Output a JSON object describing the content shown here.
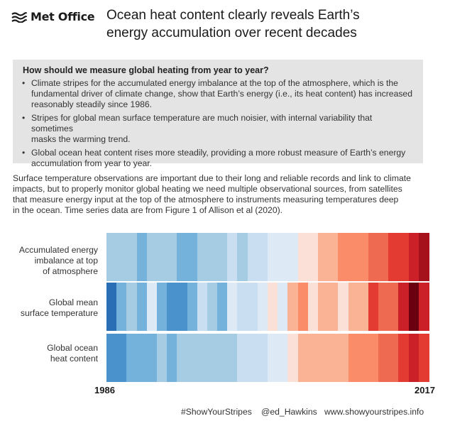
{
  "header": {
    "logo_text": "Met Office",
    "logo_icon": "met-office-wave-icon",
    "headline_lines": [
      "Ocean heat content clearly reveals Earth’s",
      "energy accumulation over recent decades"
    ]
  },
  "infobox": {
    "question": "How should we measure global heating from year to year?",
    "bullets": [
      [
        "Climate stripes for the accumulated energy imbalance at the top of the atmosphere, which is the",
        "fundamental driver of climate change, show that Earth’s energy (i.e., its heat content) has increased",
        "reasonably steadily since 1986."
      ],
      [
        "Stripes for global mean surface temperature are much noisier, with internal variability that sometimes",
        "masks the warming trend."
      ],
      [
        "Global ocean heat content rises more steadily, providing a more robust measure of Earth’s energy",
        "accumulation from year to year."
      ]
    ]
  },
  "intro_lines": [
    "Surface temperature observations are important due to their long and reliable records and link to climate",
    "impacts, but to properly monitor global heating we need multiple observational sources, from satellites",
    "that measure energy input at the top of the atmosphere to instruments measuring temperatures deep",
    "in the ocean. Time series data are from Figure 1 of Allison et al (2020)."
  ],
  "chart_data": {
    "type": "heatmap",
    "x_start": "1986",
    "x_end": "2017",
    "rows": [
      {
        "label_lines": [
          "Accumulated energy",
          "imbalance at top",
          "of atmosphere"
        ],
        "colors": [
          "#a6cce4",
          "#a6cce4",
          "#a6cce4",
          "#74b1db",
          "#a6cce4",
          "#a6cce4",
          "#a6cce4",
          "#74b1db",
          "#74b1db",
          "#a6cce4",
          "#a6cce4",
          "#a6cce4",
          "#c9def0",
          "#a6cce4",
          "#c9def0",
          "#c9def0",
          "#dde9f4",
          "#dde9f4",
          "#dde9f4",
          "#fbe0d8",
          "#fbe0d8",
          "#fbb395",
          "#fbb395",
          "#fb8c6a",
          "#fb8c6a",
          "#fb8c6a",
          "#ee6a51",
          "#ee6a51",
          "#e33a31",
          "#e33a31",
          "#cb2028",
          "#a5121b"
        ]
      },
      {
        "label_lines": [
          "Global mean",
          "surface temperature"
        ],
        "colors": [
          "#2a6fb5",
          "#74b1db",
          "#a6cce4",
          "#74b1db",
          "#dde9f4",
          "#74b1db",
          "#4a92cb",
          "#4a92cb",
          "#74b1db",
          "#c9def0",
          "#a6cce4",
          "#74b1db",
          "#dde9f4",
          "#c9def0",
          "#c9def0",
          "#dde9f4",
          "#fbe0d8",
          "#dde9f4",
          "#fbb395",
          "#fb8c6a",
          "#fbe0d8",
          "#fbb395",
          "#fbb395",
          "#fbe0d8",
          "#fbb395",
          "#fbb395",
          "#e33a31",
          "#ee6a51",
          "#ee6a51",
          "#cb2028",
          "#6b0010",
          "#cb2028"
        ]
      },
      {
        "label_lines": [
          "Global ocean",
          "heat content"
        ],
        "colors": [
          "#4a92cb",
          "#4a92cb",
          "#74b1db",
          "#74b1db",
          "#74b1db",
          "#a6cce4",
          "#74b1db",
          "#a6cce4",
          "#a6cce4",
          "#a6cce4",
          "#a6cce4",
          "#a6cce4",
          "#a6cce4",
          "#c9def0",
          "#c9def0",
          "#c9def0",
          "#dde9f4",
          "#dde9f4",
          "#fbe0d8",
          "#fbb395",
          "#fbb395",
          "#fbb395",
          "#fbb395",
          "#fbb395",
          "#fb8c6a",
          "#fb8c6a",
          "#fb8c6a",
          "#ee6a51",
          "#ee6a51",
          "#e33a31",
          "#cb2028",
          "#e33a31"
        ]
      }
    ]
  },
  "footer": {
    "hashtag": "#ShowYourStripes",
    "handle": "@ed_Hawkins",
    "website": "www.showyourstripes.info"
  }
}
